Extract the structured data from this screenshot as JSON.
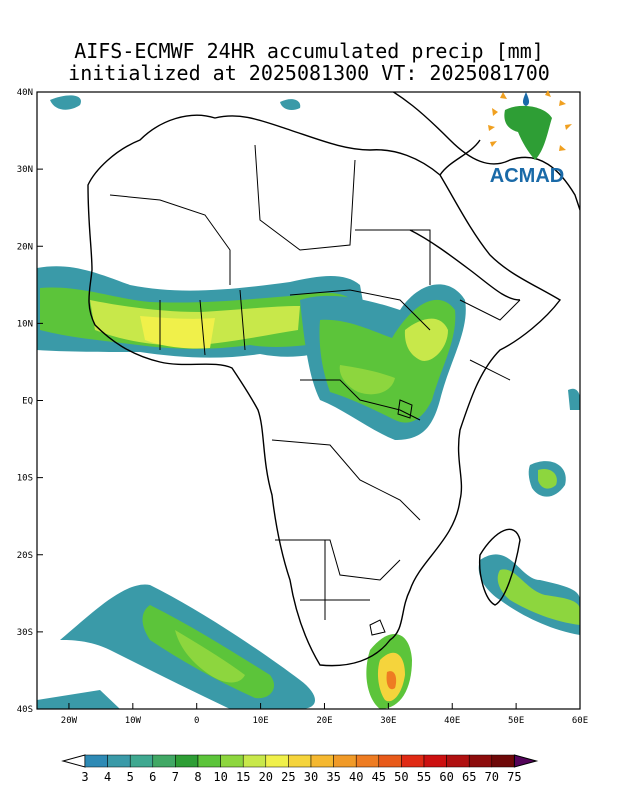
{
  "header": {
    "title_line1": "AIFS-ECMWF 24HR accumulated precip [mm]",
    "title_line2": "initialized at 2025081300 VT: 2025081700"
  },
  "map": {
    "lon_range": [
      -25,
      60
    ],
    "lat_range": [
      -40,
      40
    ],
    "x_ticks": [
      {
        "value": -20,
        "label": "20W"
      },
      {
        "value": -10,
        "label": "10W"
      },
      {
        "value": 0,
        "label": "0"
      },
      {
        "value": 10,
        "label": "10E"
      },
      {
        "value": 20,
        "label": "20E"
      },
      {
        "value": 30,
        "label": "30E"
      },
      {
        "value": 40,
        "label": "40E"
      },
      {
        "value": 50,
        "label": "50E"
      },
      {
        "value": 60,
        "label": "60E"
      }
    ],
    "y_ticks": [
      {
        "value": 40,
        "label": "40N"
      },
      {
        "value": 30,
        "label": "30N"
      },
      {
        "value": 20,
        "label": "20N"
      },
      {
        "value": 10,
        "label": "10N"
      },
      {
        "value": 0,
        "label": "EQ"
      },
      {
        "value": -10,
        "label": "10S"
      },
      {
        "value": -20,
        "label": "20S"
      },
      {
        "value": -30,
        "label": "30S"
      },
      {
        "value": -40,
        "label": "40S"
      }
    ]
  },
  "logo": {
    "text": "ACMAD"
  },
  "colorbar": {
    "labels": [
      "3",
      "4",
      "5",
      "6",
      "7",
      "8",
      "10",
      "15",
      "20",
      "25",
      "30",
      "35",
      "40",
      "45",
      "50",
      "55",
      "60",
      "65",
      "70",
      "75"
    ],
    "colors": [
      "#2e8ab5",
      "#3a9aa8",
      "#3fa890",
      "#41a865",
      "#2e9e35",
      "#5cc43a",
      "#8dd63e",
      "#c8e84a",
      "#f0f04a",
      "#f5d43c",
      "#f5b830",
      "#f09a28",
      "#ee7c22",
      "#e85a1a",
      "#e02a14",
      "#cc1010",
      "#b01010",
      "#8c0c0c",
      "#6e0808",
      "#54045a"
    ]
  }
}
